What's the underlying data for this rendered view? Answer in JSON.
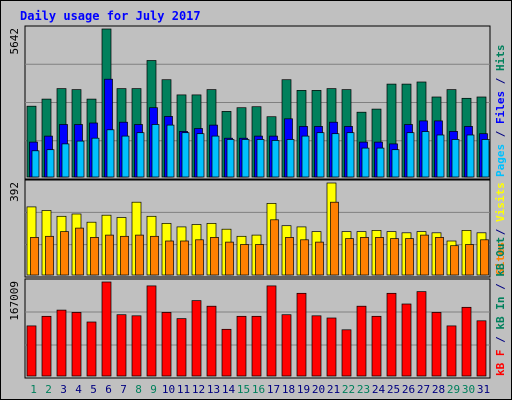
{
  "chart_data": {
    "type": "bar",
    "title": "Daily usage for July 2017",
    "colors": {
      "background": "#c0c0c0",
      "title": "#0000ff",
      "hits": "#00805c",
      "files": "#0000ff",
      "pages": "#00c0ff",
      "visits": "#ffff00",
      "sites": "#ff8000",
      "kbytes": "#ff0000",
      "weekday_label": "#000080",
      "weekend_label": "#00805c"
    },
    "x": {
      "days": [
        "1",
        "2",
        "3",
        "4",
        "5",
        "6",
        "7",
        "8",
        "9",
        "10",
        "11",
        "12",
        "13",
        "14",
        "15",
        "16",
        "17",
        "18",
        "19",
        "20",
        "21",
        "22",
        "23",
        "24",
        "25",
        "26",
        "27",
        "28",
        "29",
        "30",
        "31"
      ],
      "weekend": [
        true,
        true,
        false,
        false,
        false,
        false,
        false,
        true,
        true,
        false,
        false,
        false,
        false,
        false,
        true,
        true,
        false,
        false,
        false,
        false,
        false,
        true,
        true,
        false,
        false,
        false,
        false,
        false,
        true,
        true,
        false
      ]
    },
    "panels": [
      {
        "id": "hits-files-pages",
        "ymax_label": "5642",
        "ylim": [
          0,
          5642
        ],
        "legend_parts": [
          {
            "text": "Pages",
            "color": "#00c0ff"
          },
          {
            "text": " / ",
            "color": "#000080"
          },
          {
            "text": "Files",
            "color": "#0000ff"
          },
          {
            "text": " / ",
            "color": "#000080"
          },
          {
            "text": "Hits",
            "color": "#00805c"
          }
        ],
        "series": [
          {
            "name": "Hits",
            "color": "#00805c",
            "values": [
              2700,
              2970,
              3370,
              3330,
              2970,
              5642,
              3370,
              3370,
              4440,
              3710,
              3130,
              3130,
              3330,
              2500,
              2640,
              2680,
              2300,
              3710,
              3300,
              3300,
              3370,
              3330,
              2470,
              2590,
              3540,
              3540,
              3620,
              3050,
              3330,
              3000,
              3050
            ]
          },
          {
            "name": "Files",
            "color": "#0000ff",
            "values": [
              1330,
              1560,
              2000,
              2000,
              2060,
              3730,
              2090,
              2000,
              2640,
              2310,
              1740,
              1850,
              1980,
              1480,
              1480,
              1560,
              1560,
              2220,
              1930,
              1930,
              2090,
              1930,
              1330,
              1330,
              1260,
              2000,
              2140,
              2140,
              1740,
              1930,
              1650
            ]
          },
          {
            "name": "Pages",
            "color": "#00c0ff",
            "values": [
              1000,
              1040,
              1260,
              1370,
              1480,
              1800,
              1560,
              1690,
              2000,
              1980,
              1690,
              1650,
              1560,
              1430,
              1430,
              1430,
              1390,
              1430,
              1560,
              1690,
              1650,
              1690,
              1100,
              1100,
              1040,
              1690,
              1730,
              1600,
              1430,
              1600,
              1430
            ]
          }
        ]
      },
      {
        "id": "visits-sites",
        "ymax_label": "392",
        "ylim": [
          0,
          392
        ],
        "legend_parts": [
          {
            "text": "Sites",
            "color": "#ff8000"
          },
          {
            "text": " / ",
            "color": "#000080"
          },
          {
            "text": "Visits",
            "color": "#ffff00"
          }
        ],
        "series": [
          {
            "name": "Visits",
            "color": "#ffff00",
            "values": [
              290,
              275,
              250,
              260,
              225,
              255,
              245,
              310,
              250,
              220,
              205,
              215,
              220,
              195,
              165,
              170,
              305,
              210,
              205,
              185,
              392,
              185,
              185,
              190,
              185,
              180,
              185,
              180,
              145,
              190,
              180
            ]
          },
          {
            "name": "Sites",
            "color": "#ff8000",
            "values": [
              160,
              165,
              185,
              200,
              160,
              170,
              165,
              170,
              165,
              145,
              145,
              150,
              160,
              140,
              130,
              130,
              235,
              160,
              150,
              140,
              310,
              155,
              160,
              160,
              155,
              155,
              170,
              160,
              125,
              130,
              150
            ]
          }
        ]
      },
      {
        "id": "kbytes",
        "ymax_label": "167009",
        "ylim": [
          0,
          167009
        ],
        "legend_parts": [
          {
            "text": "kB F",
            "color": "#ff0000"
          },
          {
            "text": " / ",
            "color": "#000080"
          },
          {
            "text": "kB In",
            "color": "#00805c"
          },
          {
            "text": " / ",
            "color": "#000080"
          },
          {
            "text": "kB Out",
            "color": "#00805c"
          }
        ],
        "series": [
          {
            "name": "kB F",
            "color": "#ff0000",
            "values": [
              89000,
              106000,
              117000,
              113000,
              96000,
              167009,
              109000,
              107000,
              160000,
              113000,
              102000,
              134000,
              124000,
              83000,
              106000,
              106000,
              160000,
              109000,
              147000,
              107000,
              103000,
              82000,
              124000,
              106000,
              147000,
              128000,
              150000,
              113000,
              89000,
              122000,
              98000
            ]
          }
        ]
      }
    ]
  }
}
